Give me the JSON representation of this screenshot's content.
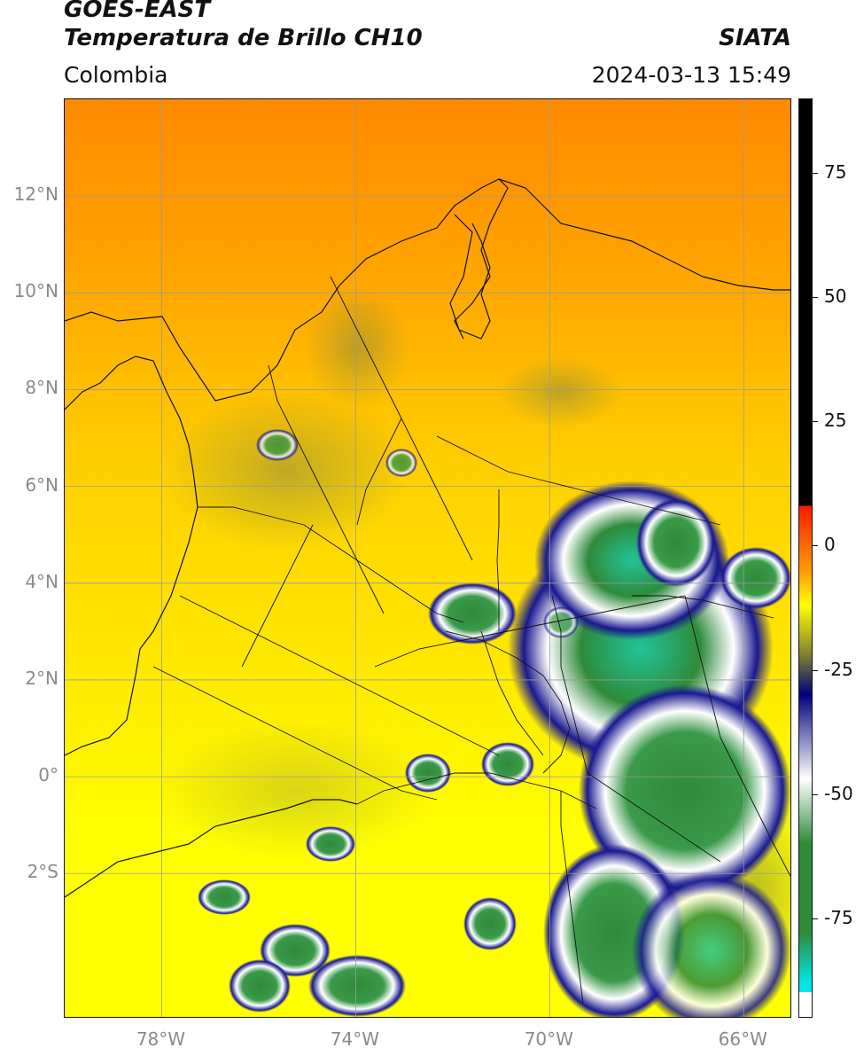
{
  "header": {
    "title_line1": "GOES-EAST",
    "title_line2": "Temperatura de Brillo CH10",
    "brand": "SIATA",
    "region": "Colombia",
    "timestamp": "2024-03-13 15:49"
  },
  "map": {
    "lon_range": [
      -80,
      -65
    ],
    "lat_range": [
      -5,
      14
    ],
    "lat_ticks": [
      {
        "value": 12,
        "label": "12°N"
      },
      {
        "value": 10,
        "label": "10°N"
      },
      {
        "value": 8,
        "label": "8°N"
      },
      {
        "value": 6,
        "label": "6°N"
      },
      {
        "value": 4,
        "label": "4°N"
      },
      {
        "value": 2,
        "label": "2°N"
      },
      {
        "value": 0,
        "label": "0°"
      },
      {
        "value": -2,
        "label": "2°S"
      }
    ],
    "lon_ticks": [
      {
        "value": -78,
        "label": "78°W"
      },
      {
        "value": -74,
        "label": "74°W"
      },
      {
        "value": -70,
        "label": "70°W"
      },
      {
        "value": -66,
        "label": "66°W"
      }
    ]
  },
  "colorbar": {
    "range": [
      -95,
      90
    ],
    "ticks": [
      {
        "value": 75,
        "label": "75"
      },
      {
        "value": 50,
        "label": "50"
      },
      {
        "value": 25,
        "label": "25"
      },
      {
        "value": 0,
        "label": "0"
      },
      {
        "value": -25,
        "label": "-25"
      },
      {
        "value": -50,
        "label": "-50"
      },
      {
        "value": -75,
        "label": "-75"
      }
    ],
    "colors": {
      "black": "#000000",
      "red": "#ff1a00",
      "orange": "#ff9a00",
      "yellow": "#ffff00",
      "olive": "#808030",
      "navy": "#000080",
      "white": "#ffffff",
      "green": "#2e8b3a",
      "cyan": "#00e5e5"
    }
  }
}
